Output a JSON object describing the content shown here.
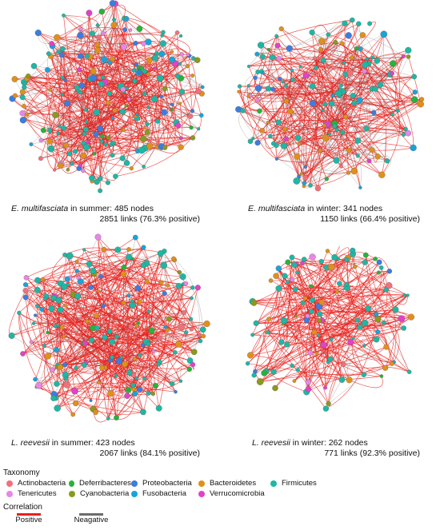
{
  "colors": {
    "positive": "#e8201c",
    "negative": "#6b6b6b"
  },
  "panels": [
    {
      "species": "E. multifasciata",
      "season_text": " in summer: 485 nodes",
      "links_text": "2851 links (76.3% positive)",
      "nodes": 485,
      "links": 2851,
      "positive_pct": 76.3
    },
    {
      "species": "E. multifasciata",
      "season_text": " in winter: 341 nodes",
      "links_text": "1150 links (66.4% positive)",
      "nodes": 341,
      "links": 1150,
      "positive_pct": 66.4
    },
    {
      "species": "L. reevesii",
      "season_text": " in summer: 423 nodes",
      "links_text": "2067 links (84.1% positive)",
      "nodes": 423,
      "links": 2067,
      "positive_pct": 84.1
    },
    {
      "species": "L. reevesii",
      "season_text": " in winter: 262 nodes",
      "links_text": "771 links (92.3% positive)",
      "nodes": 262,
      "links": 771,
      "positive_pct": 92.3
    }
  ],
  "legend": {
    "taxonomy_title": "Taxonomy",
    "taxa": [
      {
        "name": "Actinobacteria",
        "color": "#f2707a"
      },
      {
        "name": "Deferribacteres",
        "color": "#27b33a"
      },
      {
        "name": "Proteobacteria",
        "color": "#3b7de0"
      },
      {
        "name": "Bacteroidetes",
        "color": "#e0901a"
      },
      {
        "name": "Firmicutes",
        "color": "#1fb7a4"
      },
      {
        "name": "Tenericutes",
        "color": "#e787e6"
      },
      {
        "name": "Cyanobacteria",
        "color": "#8a9a1c"
      },
      {
        "name": "Fusobacteria",
        "color": "#1aa3d9"
      },
      {
        "name": "Verrucomicrobia",
        "color": "#e042c8"
      }
    ],
    "correlation_title": "Correlation",
    "positive_label": "Positive",
    "negative_label": "Neagative"
  }
}
